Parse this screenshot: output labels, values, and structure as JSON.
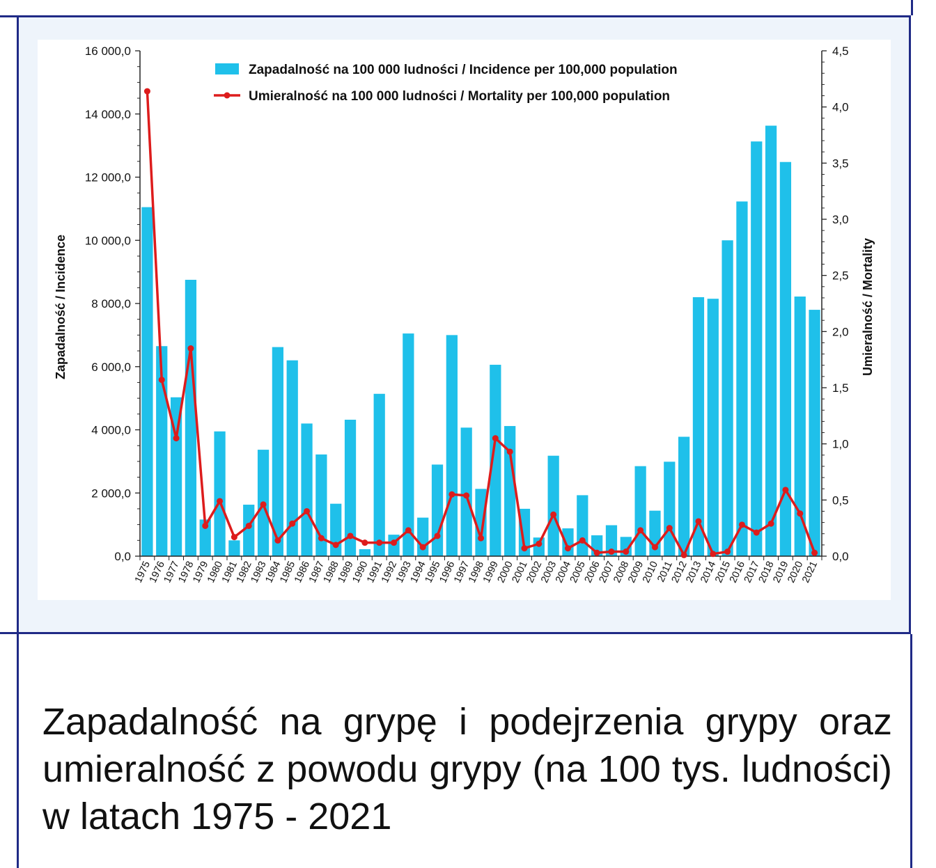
{
  "caption": "Zapadalność na grypę i podejrzenia grypy oraz umieralność z powodu grypy (na 100 tys. ludności) w latach 1975 - 2021",
  "chart_data": {
    "type": "bar+line",
    "categories": [
      "1975",
      "1976",
      "1977",
      "1978",
      "1979",
      "1980",
      "1981",
      "1982",
      "1983",
      "1984",
      "1985",
      "1986",
      "1987",
      "1988",
      "1989",
      "1990",
      "1991",
      "1992",
      "1993",
      "1994",
      "1995",
      "1996",
      "1997",
      "1998",
      "1999",
      "2000",
      "2001",
      "2002",
      "2003",
      "2004",
      "2005",
      "2006",
      "2007",
      "2008",
      "2009",
      "2010",
      "2011",
      "2012",
      "2013",
      "2014",
      "2015",
      "2016",
      "2017",
      "2018",
      "2019",
      "2020",
      "2021"
    ],
    "series": [
      {
        "name": "Zapadalność na 100 000 ludności / Incidence per 100,000 population",
        "type": "bar",
        "axis": "left",
        "color": "#1fc0ea",
        "values": [
          11050,
          6650,
          5030,
          8750,
          1160,
          3950,
          500,
          1630,
          3370,
          6620,
          6200,
          4200,
          3220,
          1660,
          4320,
          220,
          5140,
          680,
          7050,
          1220,
          2900,
          7000,
          4070,
          2130,
          6060,
          4120,
          1500,
          590,
          3180,
          880,
          1930,
          660,
          980,
          610,
          2850,
          1440,
          2990,
          3780,
          8200,
          8150,
          10000,
          11230,
          13130,
          13630,
          12480,
          8220,
          7800
        ]
      },
      {
        "name": "Umieralność na 100 000 ludności / Mortality per 100,000 population",
        "type": "line",
        "axis": "right",
        "color": "#dd1c1c",
        "values": [
          4.14,
          1.57,
          1.05,
          1.85,
          0.27,
          0.49,
          0.17,
          0.27,
          0.46,
          0.14,
          0.29,
          0.4,
          0.16,
          0.1,
          0.18,
          0.12,
          0.12,
          0.12,
          0.23,
          0.08,
          0.18,
          0.55,
          0.54,
          0.16,
          1.05,
          0.93,
          0.07,
          0.11,
          0.37,
          0.07,
          0.14,
          0.03,
          0.04,
          0.04,
          0.23,
          0.08,
          0.25,
          0.01,
          0.31,
          0.02,
          0.04,
          0.28,
          0.21,
          0.29,
          0.59,
          0.38,
          0.03
        ]
      }
    ],
    "y_left": {
      "label": "Zapadalność  /  Incidence",
      "range": [
        0,
        16000
      ],
      "ticks": [
        "0,0",
        "2 000,0",
        "4 000,0",
        "6 000,0",
        "8 000,0",
        "10 000,0",
        "12 000,0",
        "14 000,0",
        "16 000,0"
      ]
    },
    "y_right": {
      "label": "Umieralność  /  Mortality",
      "range": [
        0,
        4.5
      ],
      "ticks": [
        "0,0",
        "0,5",
        "1,0",
        "1,5",
        "2,0",
        "2,5",
        "3,0",
        "3,5",
        "4,0",
        "4,5"
      ]
    },
    "legend_position": "top-center",
    "grid": false
  }
}
